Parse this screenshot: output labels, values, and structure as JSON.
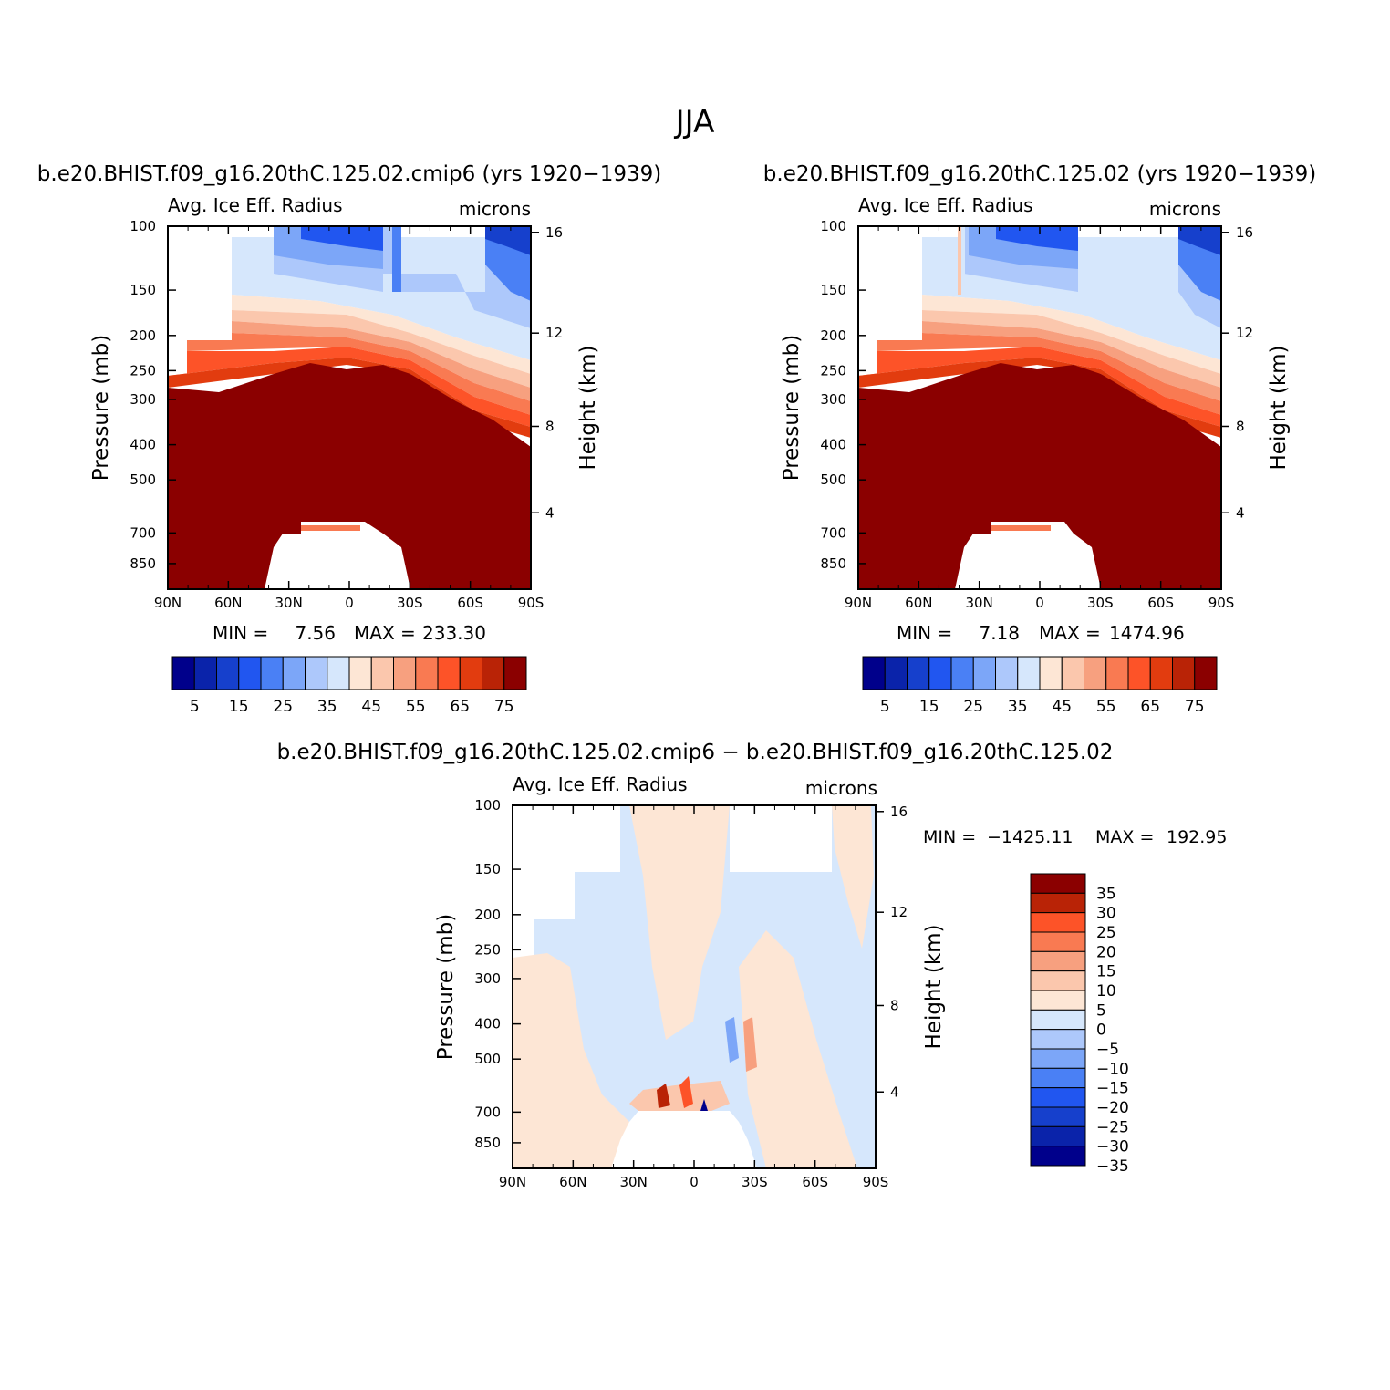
{
  "page_title": "JJA",
  "panel_labels": {
    "variable": "Avg. Ice Eff. Radius",
    "units": "microns",
    "y_left_label": "Pressure (mb)",
    "y_right_label": "Height (km)"
  },
  "colors": {
    "abs_levels": [
      "#00008b",
      "#0a23aa",
      "#1640cc",
      "#2156f0",
      "#4a80f5",
      "#7ca6f8",
      "#adc8fb",
      "#d6e7fc",
      "#fde6d5",
      "#fbc7ad",
      "#f7a07f",
      "#f97a52",
      "#fd5328",
      "#e23c0f",
      "#b92306",
      "#8b0000"
    ],
    "diff_levels": [
      "#00008b",
      "#0a23aa",
      "#1640cc",
      "#2156f0",
      "#4a80f5",
      "#7ca6f8",
      "#adc8fb",
      "#d6e7fc",
      "#fde6d5",
      "#fbc7ad",
      "#f7a07f",
      "#f97a52",
      "#fd5328",
      "#b92306",
      "#8b0000"
    ]
  },
  "chart_data": [
    {
      "type": "heatmap",
      "title": "b.e20.BHIST.f09_g16.20thC.125.02.cmip6 (yrs 1920−1939)",
      "variable": "Avg. Ice Eff. Radius",
      "units": "microns",
      "ylabel": "Pressure (mb)",
      "ylabel_right": "Height (km)",
      "x_ticks": [
        "90N",
        "60N",
        "30N",
        "0",
        "30S",
        "60S",
        "90S"
      ],
      "y_ticks": [
        "100",
        "150",
        "200",
        "250",
        "300",
        "400",
        "500",
        "700",
        "850"
      ],
      "y_right_ticks": [
        "16",
        "12",
        "8",
        "4"
      ],
      "ylim": [
        100,
        1000
      ],
      "log_scale_y": true,
      "min_label": "MIN =",
      "min_value": "7.56",
      "max_label": "MAX =",
      "max_value": "233.30",
      "colorbar_labels": [
        "5",
        "15",
        "25",
        "35",
        "45",
        "55",
        "65",
        "75"
      ],
      "colorbar_orientation": "horizontal"
    },
    {
      "type": "heatmap",
      "title": "b.e20.BHIST.f09_g16.20thC.125.02 (yrs 1920−1939)",
      "variable": "Avg. Ice Eff. Radius",
      "units": "microns",
      "ylabel": "Pressure (mb)",
      "ylabel_right": "Height (km)",
      "x_ticks": [
        "90N",
        "60N",
        "30N",
        "0",
        "30S",
        "60S",
        "90S"
      ],
      "y_ticks": [
        "100",
        "150",
        "200",
        "250",
        "300",
        "400",
        "500",
        "700",
        "850"
      ],
      "y_right_ticks": [
        "16",
        "12",
        "8",
        "4"
      ],
      "ylim": [
        100,
        1000
      ],
      "log_scale_y": true,
      "min_label": "MIN =",
      "min_value": "7.18",
      "max_label": "MAX =",
      "max_value": "1474.96",
      "colorbar_labels": [
        "5",
        "15",
        "25",
        "35",
        "45",
        "55",
        "65",
        "75"
      ],
      "colorbar_orientation": "horizontal"
    },
    {
      "type": "heatmap",
      "title": "b.e20.BHIST.f09_g16.20thC.125.02.cmip6 − b.e20.BHIST.f09_g16.20thC.125.02",
      "variable": "Avg. Ice Eff. Radius",
      "units": "microns",
      "ylabel": "Pressure (mb)",
      "ylabel_right": "Height (km)",
      "x_ticks": [
        "90N",
        "60N",
        "30N",
        "0",
        "30S",
        "60S",
        "90S"
      ],
      "y_ticks": [
        "100",
        "150",
        "200",
        "250",
        "300",
        "400",
        "500",
        "700",
        "850"
      ],
      "y_right_ticks": [
        "16",
        "12",
        "8",
        "4"
      ],
      "ylim": [
        100,
        1000
      ],
      "log_scale_y": true,
      "min_label": "MIN =",
      "min_value": "−1425.11",
      "max_label": "MAX =",
      "max_value": "192.95",
      "colorbar_labels": [
        "35",
        "30",
        "25",
        "20",
        "15",
        "10",
        "5",
        "0",
        "−5",
        "−10",
        "−15",
        "−20",
        "−25",
        "−30",
        "−35"
      ],
      "colorbar_orientation": "vertical"
    }
  ]
}
